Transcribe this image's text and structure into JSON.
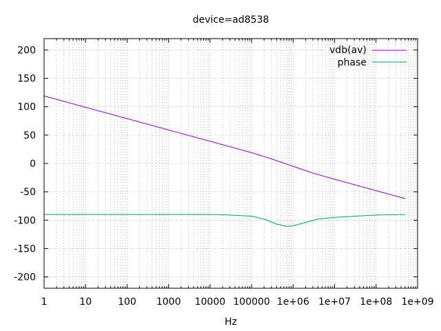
{
  "chart_data": {
    "type": "line",
    "title": "device=ad8538",
    "xlabel": "Hz",
    "ylabel": "",
    "xscale": "log",
    "xlim": [
      1,
      1000000000
    ],
    "ylim": [
      -220,
      220
    ],
    "grid": true,
    "legend_position": "top-right",
    "x_tick_labels": [
      "1",
      "10",
      "100",
      "1000",
      "10000",
      "100000",
      "1e+06",
      "1e+07",
      "1e+08",
      "1e+09"
    ],
    "y_ticks": [
      -200,
      -150,
      -100,
      -50,
      0,
      50,
      100,
      150,
      200
    ],
    "series": [
      {
        "name": "vdb(av)",
        "color": "#9400d3",
        "x": [
          1,
          10,
          100,
          1000,
          10000,
          100000,
          300000,
          1000000,
          3000000,
          10000000,
          100000000,
          500000000
        ],
        "y": [
          119,
          99,
          79,
          59,
          39,
          19,
          8,
          -5,
          -17,
          -28,
          -48,
          -62
        ]
      },
      {
        "name": "phase",
        "color": "#009e73",
        "x": [
          1,
          3,
          10,
          100,
          1000,
          10000,
          30000,
          100000,
          200000,
          400000,
          700000,
          1000000,
          2000000,
          4000000,
          10000000,
          30000000,
          100000000,
          500000000
        ],
        "y": [
          -90,
          -90,
          -90,
          -90,
          -90,
          -90,
          -91,
          -93,
          -98,
          -107,
          -111,
          -110,
          -104,
          -98,
          -95,
          -93,
          -91,
          -90
        ]
      }
    ]
  }
}
